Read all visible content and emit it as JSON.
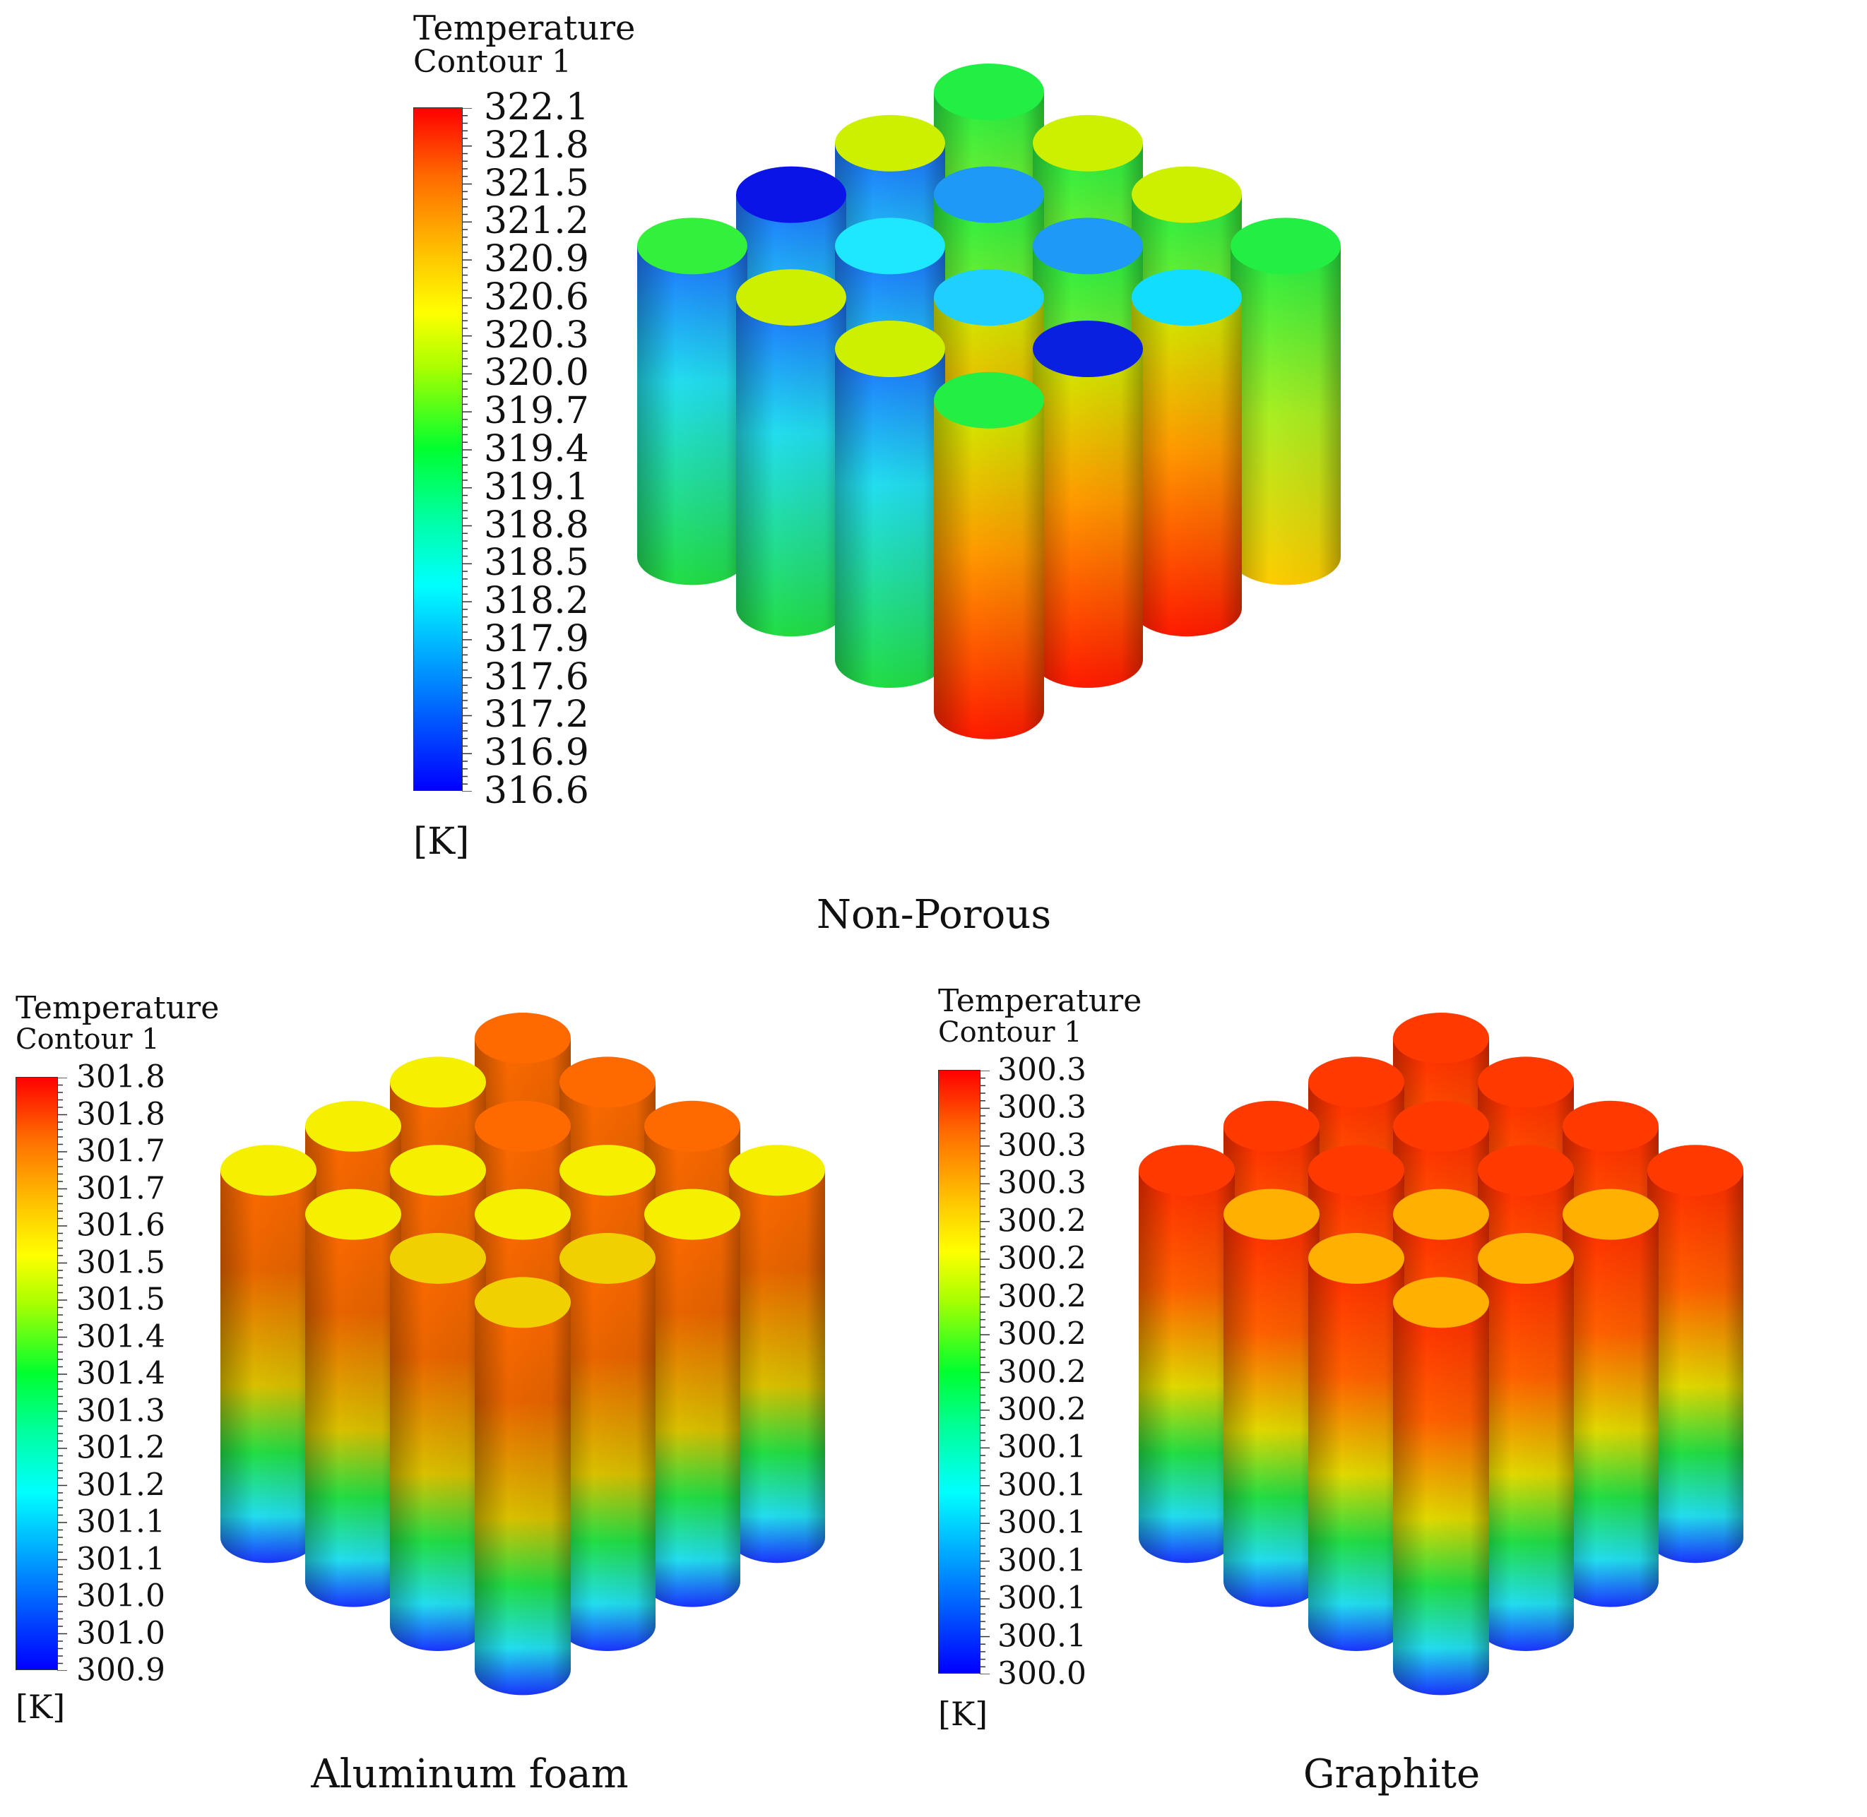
{
  "panels": [
    {
      "id": "non-porous",
      "title_line1": "Temperature",
      "title_line2": "Contour 1",
      "scale_labels": [
        "322.1",
        "321.8",
        "321.5",
        "321.2",
        "320.9",
        "320.6",
        "320.3",
        "320.0",
        "319.7",
        "319.4",
        "319.1",
        "318.8",
        "318.5",
        "318.2",
        "317.9",
        "317.6",
        "317.2",
        "316.9",
        "316.6"
      ],
      "unit": "[K]",
      "caption": "Non-Porous"
    },
    {
      "id": "aluminum-foam",
      "title_line1": "Temperature",
      "title_line2": "Contour 1",
      "scale_labels": [
        "301.8",
        "301.8",
        "301.7",
        "301.7",
        "301.6",
        "301.5",
        "301.5",
        "301.4",
        "301.4",
        "301.3",
        "301.2",
        "301.2",
        "301.1",
        "301.1",
        "301.0",
        "301.0",
        "300.9"
      ],
      "unit": "[K]",
      "caption": "Aluminum foam"
    },
    {
      "id": "graphite",
      "title_line1": "Temperature",
      "title_line2": "Contour 1",
      "scale_labels": [
        "300.3",
        "300.3",
        "300.3",
        "300.3",
        "300.2",
        "300.2",
        "300.2",
        "300.2",
        "300.2",
        "300.2",
        "300.1",
        "300.1",
        "300.1",
        "300.1",
        "300.1",
        "300.1",
        "300.0"
      ],
      "unit": "[K]",
      "caption": "Graphite"
    }
  ],
  "colors": {
    "scale": [
      "#ff0000",
      "#ff5500",
      "#ffaa00",
      "#ffff00",
      "#aaff00",
      "#00ff00",
      "#00ffaa",
      "#00ffff",
      "#00aaff",
      "#0055ff",
      "#0000ff"
    ]
  }
}
